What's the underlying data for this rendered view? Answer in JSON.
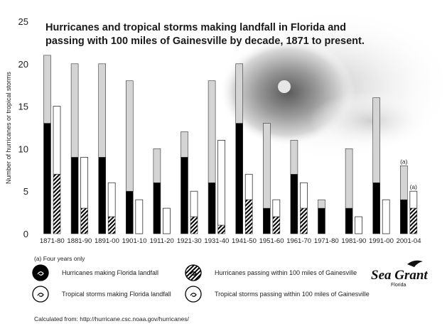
{
  "chart_data": {
    "type": "bar",
    "title_line1": "Hurricanes and tropical storms making landfall in Florida and",
    "title_line2": "passing with 100 miles of Gainesville by decade, 1871 to present.",
    "ylabel": "Number of hurricanes or tropical storms",
    "ylim": [
      0,
      25
    ],
    "yticks": [
      0,
      5,
      10,
      15,
      20,
      25
    ],
    "categories": [
      "1871-80",
      "1881-90",
      "1891-00",
      "1901-10",
      "1911-20",
      "1921-30",
      "1931-40",
      "1941-50",
      "1951-60",
      "1961-70",
      "1971-80",
      "1981-90",
      "1991-00",
      "2001-04"
    ],
    "series": [
      {
        "name": "Hurricanes making Florida landfall",
        "values": [
          13,
          9,
          9,
          5,
          6,
          9,
          6,
          13,
          3,
          7,
          3,
          3,
          6,
          4
        ]
      },
      {
        "name": "Tropical storms making Florida landfall",
        "values": [
          8,
          11,
          11,
          13,
          4,
          3,
          12,
          7,
          10,
          4,
          1,
          7,
          10,
          4
        ]
      },
      {
        "name": "Hurricanes passing within 100 miles of Gainesville",
        "values": [
          7,
          3,
          2,
          0,
          0,
          2,
          1,
          4,
          2,
          3,
          0,
          0,
          0,
          3
        ]
      },
      {
        "name": "Tropical storms passing within 100 miles of Gainesville",
        "values": [
          8,
          6,
          4,
          4,
          3,
          3,
          10,
          3,
          2,
          3,
          0,
          2,
          4,
          2
        ]
      }
    ],
    "annotations": [
      {
        "category": "2001-04",
        "bar": "landfall",
        "text": "(a)"
      },
      {
        "category": "2001-04",
        "bar": "gainesville",
        "text": "(a)"
      }
    ],
    "note": "(a) Four years only",
    "legend": [
      {
        "key": "hur_land",
        "label": "Hurricanes making Florida landfall"
      },
      {
        "key": "hur_gnv",
        "label": "Hurricanes passing within 100 miles of Gainesville"
      },
      {
        "key": "ts_land",
        "label": "Tropical storms making Florida landfall"
      },
      {
        "key": "ts_gnv",
        "label": "Tropical storms passing within 100 miles of Gainesville"
      }
    ],
    "source": "Calculated from:   http://hurricane.csc.noaa.gov/hurricanes/",
    "colors": {
      "hurricane_land": "#000000",
      "tropical_land": "#d4d4d4",
      "gnv_storm": "#ffffff",
      "outline": "#333333"
    }
  },
  "brand": {
    "name": "Sea Grant",
    "sub": "Florida"
  }
}
